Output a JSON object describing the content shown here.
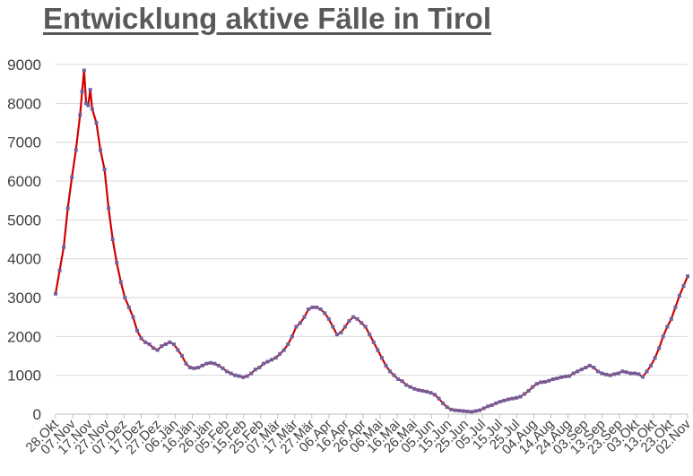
{
  "chart_data": {
    "type": "line",
    "title": "Entwicklung aktive Fälle in Tirol",
    "xlabel": "",
    "ylabel": "",
    "ylim": [
      0,
      9000
    ],
    "yticks": [
      0,
      1000,
      2000,
      3000,
      4000,
      5000,
      6000,
      7000,
      8000,
      9000
    ],
    "grid": true,
    "legend": "none",
    "x_tick_labels": [
      "28.Okt",
      "07.Nov",
      "17.Nov",
      "27.Nov",
      "07.Dez",
      "17.Dez",
      "27.Dez",
      "06.Jän",
      "16.Jän",
      "26.Jän",
      "05.Feb",
      "15.Feb",
      "25.Feb",
      "07.Mär",
      "17.Mär",
      "27.Mär",
      "06.Apr",
      "16.Apr",
      "26.Apr",
      "06.Mai",
      "16.Mai",
      "26.Mai",
      "05.Jun",
      "15.Jun",
      "25.Jun",
      "05.Jul",
      "15.Jul",
      "25.Jul",
      "04.Aug",
      "14.Aug",
      "24.Aug",
      "03.Sep",
      "13.Sep",
      "23.Sep",
      "03.Okt",
      "13.Okt",
      "23.Okt",
      "02.Nov"
    ],
    "series": [
      {
        "color": "#d00000",
        "marker_color": "#7060a0",
        "values": [
          [
            0,
            3100
          ],
          [
            2,
            3700
          ],
          [
            4,
            4300
          ],
          [
            6,
            5300
          ],
          [
            8,
            6100
          ],
          [
            10,
            6800
          ],
          [
            12,
            7700
          ],
          [
            13,
            8300
          ],
          [
            14,
            8850
          ],
          [
            15,
            8000
          ],
          [
            16,
            7950
          ],
          [
            17,
            8350
          ],
          [
            18,
            7850
          ],
          [
            20,
            7500
          ],
          [
            22,
            6800
          ],
          [
            24,
            6300
          ],
          [
            26,
            5300
          ],
          [
            28,
            4500
          ],
          [
            30,
            3900
          ],
          [
            32,
            3400
          ],
          [
            34,
            3000
          ],
          [
            36,
            2750
          ],
          [
            38,
            2500
          ],
          [
            40,
            2150
          ],
          [
            42,
            1950
          ],
          [
            44,
            1850
          ],
          [
            46,
            1800
          ],
          [
            48,
            1700
          ],
          [
            50,
            1650
          ],
          [
            52,
            1750
          ],
          [
            54,
            1800
          ],
          [
            56,
            1850
          ],
          [
            58,
            1800
          ],
          [
            60,
            1650
          ],
          [
            62,
            1500
          ],
          [
            64,
            1300
          ],
          [
            66,
            1200
          ],
          [
            68,
            1180
          ],
          [
            70,
            1200
          ],
          [
            72,
            1250
          ],
          [
            74,
            1300
          ],
          [
            76,
            1320
          ],
          [
            78,
            1300
          ],
          [
            80,
            1250
          ],
          [
            82,
            1180
          ],
          [
            84,
            1100
          ],
          [
            86,
            1050
          ],
          [
            88,
            1000
          ],
          [
            90,
            980
          ],
          [
            92,
            950
          ],
          [
            94,
            980
          ],
          [
            96,
            1050
          ],
          [
            98,
            1150
          ],
          [
            100,
            1200
          ],
          [
            102,
            1300
          ],
          [
            104,
            1350
          ],
          [
            106,
            1400
          ],
          [
            108,
            1450
          ],
          [
            110,
            1550
          ],
          [
            112,
            1650
          ],
          [
            114,
            1800
          ],
          [
            116,
            2000
          ],
          [
            118,
            2250
          ],
          [
            120,
            2350
          ],
          [
            122,
            2500
          ],
          [
            124,
            2700
          ],
          [
            126,
            2750
          ],
          [
            128,
            2750
          ],
          [
            130,
            2700
          ],
          [
            132,
            2600
          ],
          [
            134,
            2450
          ],
          [
            136,
            2250
          ],
          [
            138,
            2050
          ],
          [
            140,
            2100
          ],
          [
            142,
            2250
          ],
          [
            144,
            2400
          ],
          [
            146,
            2500
          ],
          [
            148,
            2450
          ],
          [
            150,
            2350
          ],
          [
            152,
            2250
          ],
          [
            154,
            2050
          ],
          [
            156,
            1850
          ],
          [
            158,
            1650
          ],
          [
            160,
            1450
          ],
          [
            162,
            1250
          ],
          [
            164,
            1100
          ],
          [
            166,
            1000
          ],
          [
            168,
            900
          ],
          [
            170,
            850
          ],
          [
            172,
            750
          ],
          [
            174,
            700
          ],
          [
            176,
            650
          ],
          [
            178,
            620
          ],
          [
            180,
            600
          ],
          [
            182,
            580
          ],
          [
            184,
            550
          ],
          [
            186,
            500
          ],
          [
            188,
            400
          ],
          [
            190,
            280
          ],
          [
            192,
            180
          ],
          [
            194,
            120
          ],
          [
            196,
            100
          ],
          [
            198,
            90
          ],
          [
            200,
            80
          ],
          [
            202,
            70
          ],
          [
            204,
            60
          ],
          [
            206,
            80
          ],
          [
            208,
            100
          ],
          [
            210,
            150
          ],
          [
            212,
            200
          ],
          [
            214,
            230
          ],
          [
            216,
            280
          ],
          [
            218,
            320
          ],
          [
            220,
            350
          ],
          [
            222,
            380
          ],
          [
            224,
            400
          ],
          [
            226,
            420
          ],
          [
            228,
            450
          ],
          [
            230,
            520
          ],
          [
            232,
            600
          ],
          [
            234,
            700
          ],
          [
            236,
            780
          ],
          [
            238,
            820
          ],
          [
            240,
            830
          ],
          [
            242,
            860
          ],
          [
            244,
            900
          ],
          [
            246,
            920
          ],
          [
            248,
            950
          ],
          [
            250,
            970
          ],
          [
            252,
            980
          ],
          [
            254,
            1050
          ],
          [
            256,
            1100
          ],
          [
            258,
            1150
          ],
          [
            260,
            1200
          ],
          [
            262,
            1250
          ],
          [
            264,
            1200
          ],
          [
            266,
            1100
          ],
          [
            268,
            1050
          ],
          [
            270,
            1020
          ],
          [
            272,
            1000
          ],
          [
            274,
            1030
          ],
          [
            276,
            1050
          ],
          [
            278,
            1100
          ],
          [
            280,
            1080
          ],
          [
            282,
            1050
          ],
          [
            284,
            1050
          ],
          [
            286,
            1030
          ],
          [
            288,
            960
          ],
          [
            290,
            1100
          ],
          [
            292,
            1250
          ],
          [
            294,
            1450
          ],
          [
            296,
            1700
          ],
          [
            298,
            2000
          ],
          [
            300,
            2250
          ],
          [
            302,
            2450
          ],
          [
            304,
            2750
          ],
          [
            306,
            3050
          ],
          [
            308,
            3300
          ],
          [
            310,
            3550
          ]
        ]
      }
    ]
  }
}
